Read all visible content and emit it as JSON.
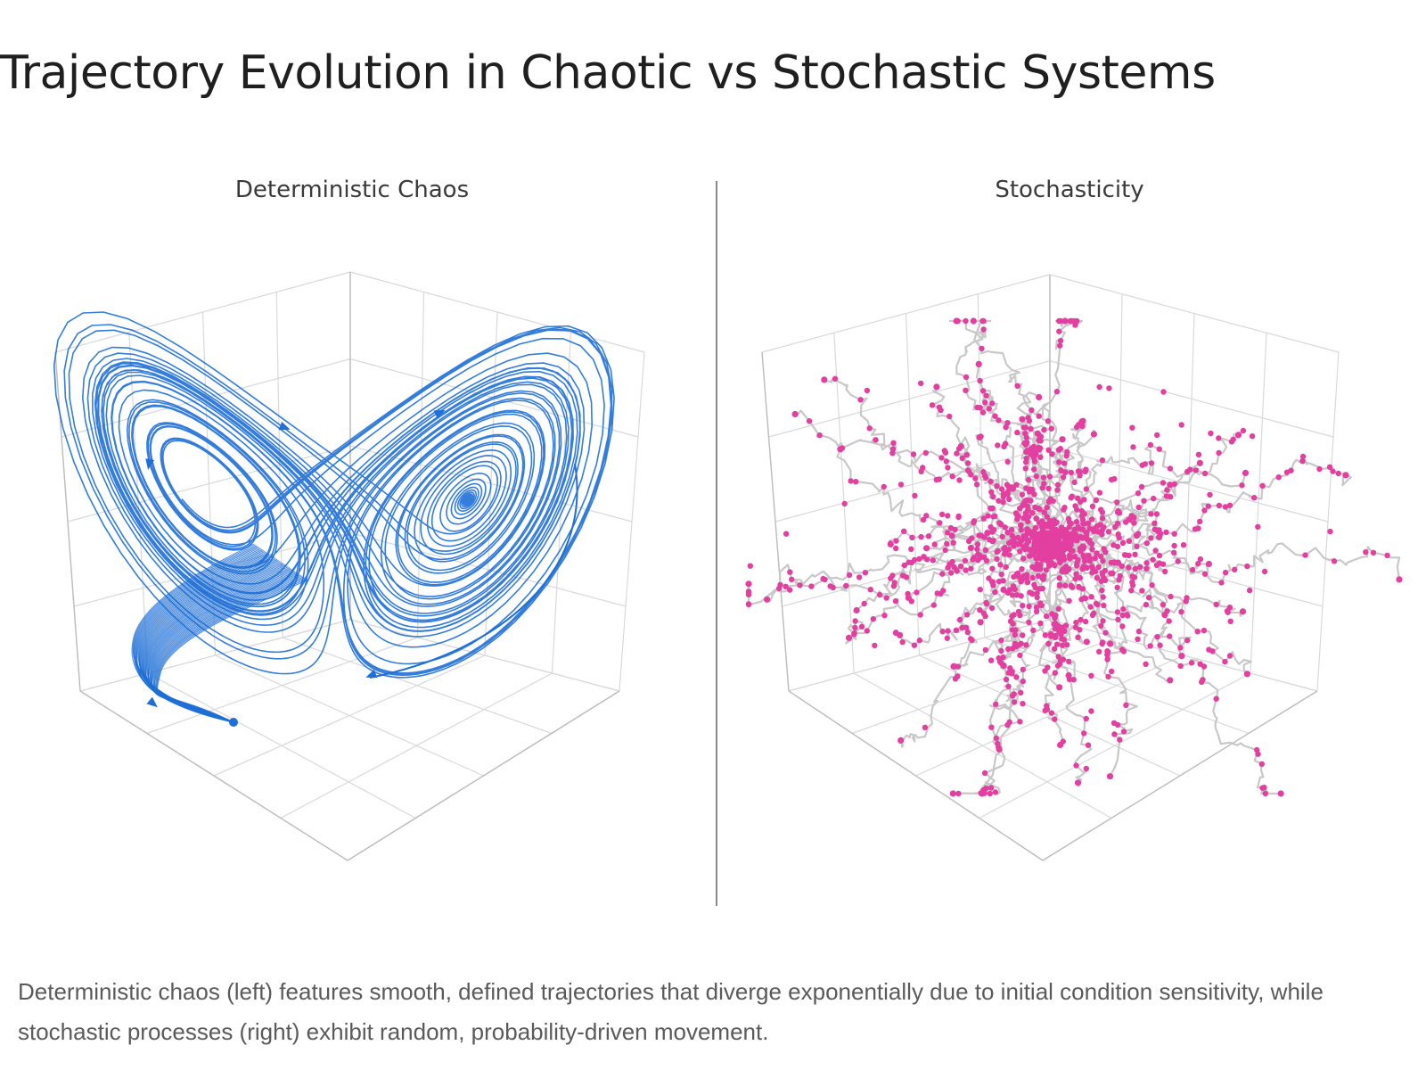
{
  "page": {
    "title": "Trajectory Evolution in Chaotic vs Stochastic Systems",
    "caption": "Deterministic chaos (left) features smooth, defined trajectories that diverge exponentially due to initial condition sensitivity, while stochastic processes (right) exhibit random, probability-driven movement."
  },
  "panels": {
    "chaos": {
      "title": "Deterministic Chaos",
      "trajectory_color": "#1f6fd6",
      "trajectory_count": 40,
      "kind": "lorenz-attractor"
    },
    "stochastic": {
      "title": "Stochasticity",
      "path_color": "#c8c8c8",
      "point_color": "#e23fa0",
      "walker_count": 60,
      "kind": "random-walk"
    }
  },
  "colors": {
    "grid": "#d9d9d9",
    "axis": "#bdbdbd",
    "divider": "#8a8a8a"
  }
}
